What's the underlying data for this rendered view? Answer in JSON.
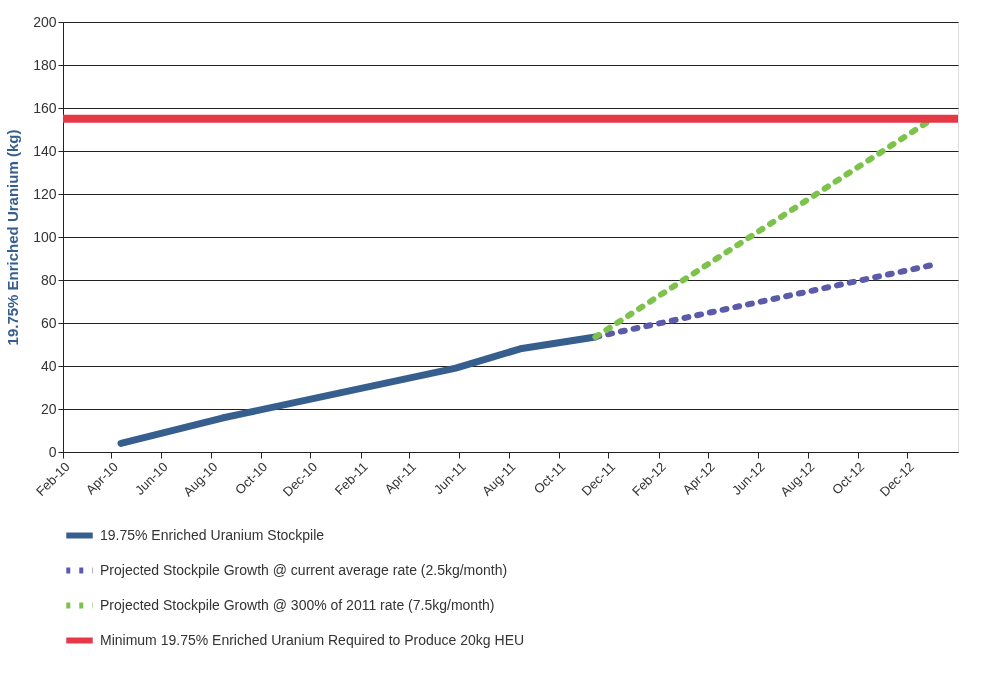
{
  "chart_data": {
    "type": "line",
    "ylabel": "19.75% Enriched Uranium (kg)",
    "xlim": [
      "2010-02-01",
      "2013-02-01"
    ],
    "ylim": [
      0,
      200
    ],
    "yticks": [
      0,
      20,
      40,
      60,
      80,
      100,
      120,
      140,
      160,
      180,
      200
    ],
    "xticks": [
      {
        "value": "2010-02-01",
        "label": "Feb-10"
      },
      {
        "value": "2010-04-01",
        "label": "Apr-10"
      },
      {
        "value": "2010-06-01",
        "label": "Jun-10"
      },
      {
        "value": "2010-08-01",
        "label": "Aug-10"
      },
      {
        "value": "2010-10-01",
        "label": "Oct-10"
      },
      {
        "value": "2010-12-01",
        "label": "Dec-10"
      },
      {
        "value": "2011-02-01",
        "label": "Feb-11"
      },
      {
        "value": "2011-04-01",
        "label": "Apr-11"
      },
      {
        "value": "2011-06-01",
        "label": "Jun-11"
      },
      {
        "value": "2011-08-01",
        "label": "Aug-11"
      },
      {
        "value": "2011-10-01",
        "label": "Oct-11"
      },
      {
        "value": "2011-12-01",
        "label": "Dec-11"
      },
      {
        "value": "2012-02-01",
        "label": "Feb-12"
      },
      {
        "value": "2012-04-01",
        "label": "Apr-12"
      },
      {
        "value": "2012-06-01",
        "label": "Jun-12"
      },
      {
        "value": "2012-08-01",
        "label": "Aug-12"
      },
      {
        "value": "2012-10-01",
        "label": "Oct-12"
      },
      {
        "value": "2012-12-01",
        "label": "Dec-12"
      }
    ],
    "grid": "y",
    "legend": "bottom",
    "marker": "none",
    "series": [
      {
        "name": "19.75% Enriched Uranium Stockpile",
        "color": "#365f8e",
        "line_style": "solid",
        "x": [
          "2010-04-13",
          "2010-08-15",
          "2010-09-15",
          "2011-05-28",
          "2011-08-15",
          "2011-11-15"
        ],
        "values": [
          4,
          15.8,
          18.3,
          39,
          48,
          53.5
        ]
      },
      {
        "name": "Projected Stockpile Growth @ current average rate (2.5kg/month)",
        "color": "#5b5baa",
        "line_style": "dotted",
        "x": [
          "2011-11-15",
          "2013-01-01"
        ],
        "values": [
          53.5,
          87
        ]
      },
      {
        "name": "Projected Stockpile Growth @ 300% of 2011 rate (7.5kg/month)",
        "color": "#7dc24b",
        "line_style": "dotted",
        "x": [
          "2011-11-15",
          "2013-01-01"
        ],
        "values": [
          53.5,
          155
        ]
      }
    ],
    "ref_lines": [
      {
        "axis": "y",
        "value": 155,
        "label": "Minimum 19.75% Enriched Uranium Required to Produce 20kg HEU",
        "color": "#e63946",
        "line_style": "solid"
      }
    ]
  }
}
